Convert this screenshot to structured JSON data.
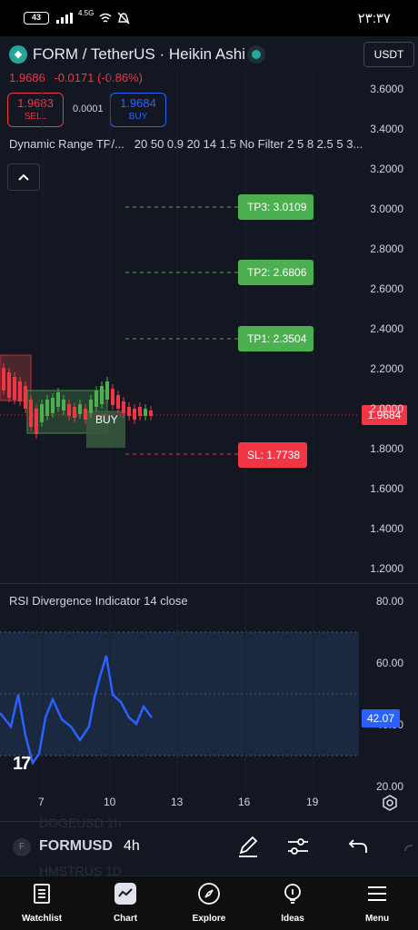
{
  "status_bar": {
    "battery": "43",
    "network": "4.5G",
    "time": "۲۳:۳۷"
  },
  "header": {
    "symbol_title": "FORM / TetherUS · Heikin Ashi",
    "currency": "USDT",
    "last_price": "1.9686",
    "change": "-0.0171 (-0.86%)"
  },
  "trade": {
    "sell_price": "1.9683",
    "sell_label": "SELL",
    "spread": "0.0001",
    "buy_price": "1.9684",
    "buy_label": "BUY"
  },
  "indicator": {
    "name": "Dynamic Range TP/...",
    "params": "20 50 0.9 20 14 1.5 No Filter 2 5 8 2.5 5 3..."
  },
  "price_axis": [
    "3.6000",
    "3.4000",
    "3.2000",
    "3.0000",
    "2.8000",
    "2.6000",
    "2.4000",
    "2.2000",
    "2.0000",
    "1.8000",
    "1.6000",
    "1.4000",
    "1.2000"
  ],
  "levels": {
    "tp3": "TP3: 3.0109",
    "tp2": "TP2: 2.6806",
    "tp1": "TP1: 2.3504",
    "sl": "SL:  1.7738",
    "current": "1.9684",
    "buy_marker": "BUY"
  },
  "rsi": {
    "label": "RSI Divergence Indicator  14 close",
    "axis": [
      "80.00",
      "60.00",
      "40.00",
      "20.00"
    ],
    "current": "42.07"
  },
  "time_axis": [
    "7",
    "10",
    "13",
    "16",
    "19"
  ],
  "toolbar": {
    "ghost_above": "DOGEUSD    1h",
    "ghost_below": "HMSTRUS    1D",
    "symbol_badge": "F",
    "symbol": "FORMUSD",
    "interval": "4h"
  },
  "nav": [
    {
      "label": "Watchlist",
      "icon": "watchlist-icon"
    },
    {
      "label": "Chart",
      "icon": "chart-icon"
    },
    {
      "label": "Explore",
      "icon": "compass-icon"
    },
    {
      "label": "Ideas",
      "icon": "lightbulb-icon"
    },
    {
      "label": "Menu",
      "icon": "menu-icon"
    }
  ],
  "colors": {
    "background": "#131722",
    "up": "#4caf50",
    "down": "#f23645",
    "rsi_line": "#2962ff"
  }
}
